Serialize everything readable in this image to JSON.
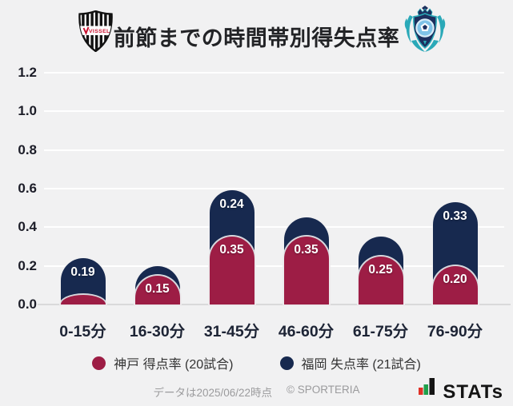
{
  "header": {
    "title": "前節までの時間帯別得失点率",
    "kobe_logo_text": "VISSEL",
    "icons": {
      "left": "vissel-kobe-crest",
      "right": "avispa-fukuoka-crest"
    }
  },
  "chart_data": {
    "type": "bar",
    "stacked": true,
    "title": "前節までの時間帯別得失点率",
    "categories": [
      "0-15分",
      "16-30分",
      "31-45分",
      "46-60分",
      "61-75分",
      "76-90分"
    ],
    "series": [
      {
        "name": "神戸 得点率 (20試合)",
        "color": "#9d1d45",
        "values": [
          0.05,
          0.15,
          0.35,
          0.35,
          0.25,
          0.2
        ],
        "labels": [
          "",
          "0.15",
          "0.35",
          "0.35",
          "0.25",
          "0.20"
        ]
      },
      {
        "name": "福岡 失点率 (21試合)",
        "color": "#17294f",
        "values": [
          0.19,
          0.05,
          0.24,
          0.1,
          0.1,
          0.33
        ],
        "labels": [
          "0.19",
          "",
          "0.24",
          "",
          "",
          "0.33"
        ]
      }
    ],
    "ylim": [
      0,
      1.2
    ],
    "yticks": [
      "1.2",
      "1.0",
      "0.8",
      "0.6",
      "0.4",
      "0.2",
      "0.0"
    ],
    "grid": true,
    "legend_position": "bottom",
    "background_color": "#f1f1f2",
    "gridline_color": "#ffffff",
    "baseline_color": "#d9d9da"
  },
  "footer": {
    "note": "データは2025/06/22時点",
    "copyright": "© SPORTERIA",
    "brand": "STATs",
    "brand_icon": "bar-chart-icon",
    "brand_icon_colors": [
      "#e03127",
      "#1fa04b",
      "#141414"
    ]
  }
}
